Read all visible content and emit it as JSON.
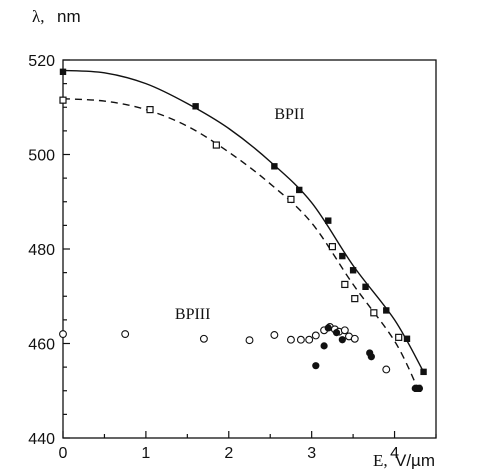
{
  "chart_data": {
    "type": "scatter",
    "xlabel_var": "E,",
    "xlabel_unit": "V/µm",
    "ylabel_var": "λ,",
    "ylabel_unit": "nm",
    "xlim": [
      0,
      4.5
    ],
    "ylim": [
      440,
      520
    ],
    "xticks": [
      0,
      1,
      2,
      3,
      4
    ],
    "yticks": [
      440,
      460,
      480,
      500,
      520
    ],
    "xtick_labels": [
      "0",
      "1",
      "2",
      "3",
      "4"
    ],
    "ytick_labels": [
      "440",
      "460",
      "480",
      "500",
      "520"
    ],
    "grid": false,
    "annotations": [
      {
        "text": "BPII",
        "x": 2.55,
        "y": 507.5
      },
      {
        "text": "BPIII",
        "x": 1.35,
        "y": 465.2
      }
    ],
    "series": [
      {
        "marker": "filled-square",
        "line": "solid",
        "points": [
          [
            0,
            517.5
          ],
          [
            1.6,
            510.2
          ],
          [
            2.55,
            497.5
          ],
          [
            2.85,
            492.5
          ],
          [
            3.2,
            486
          ],
          [
            3.37,
            478.5
          ],
          [
            3.5,
            475.5
          ],
          [
            3.65,
            472
          ],
          [
            3.9,
            467
          ],
          [
            4.15,
            461
          ],
          [
            4.35,
            454
          ]
        ]
      },
      {
        "marker": "hollow-square",
        "line": "dashed",
        "points": [
          [
            0,
            511.5
          ],
          [
            1.05,
            509.5
          ],
          [
            1.85,
            502
          ],
          [
            2.75,
            490.5
          ],
          [
            3.25,
            480.5
          ],
          [
            3.4,
            472.5
          ],
          [
            3.52,
            469.5
          ],
          [
            3.75,
            466.5
          ],
          [
            4.05,
            461.3
          ],
          [
            4.28,
            450.5
          ]
        ]
      },
      {
        "marker": "hollow-circle",
        "line": "none",
        "points": [
          [
            0,
            462
          ],
          [
            0.75,
            462
          ],
          [
            1.7,
            461
          ],
          [
            2.25,
            460.7
          ],
          [
            2.55,
            461.8
          ],
          [
            2.75,
            460.8
          ],
          [
            2.87,
            460.8
          ],
          [
            2.97,
            460.8
          ],
          [
            3.05,
            461.7
          ],
          [
            3.15,
            462.8
          ],
          [
            3.22,
            463.5
          ],
          [
            3.28,
            463
          ],
          [
            3.33,
            462.5
          ],
          [
            3.4,
            462.8
          ],
          [
            3.45,
            461.5
          ],
          [
            3.52,
            461
          ],
          [
            3.9,
            454.5
          ]
        ]
      },
      {
        "marker": "filled-circle",
        "line": "none",
        "points": [
          [
            3.05,
            455.3
          ],
          [
            3.15,
            459.5
          ],
          [
            3.2,
            463.3
          ],
          [
            3.3,
            462.3
          ],
          [
            3.37,
            460.8
          ],
          [
            3.7,
            458
          ],
          [
            3.72,
            457.2
          ],
          [
            4.25,
            450.5
          ],
          [
            4.3,
            450.5
          ]
        ]
      }
    ],
    "curves": [
      {
        "style": "solid",
        "points": [
          [
            0,
            517.8
          ],
          [
            0.5,
            517.3
          ],
          [
            1.0,
            515
          ],
          [
            1.5,
            510.8
          ],
          [
            2.0,
            505.5
          ],
          [
            2.5,
            498.5
          ],
          [
            3.0,
            489.8
          ],
          [
            3.5,
            476.5
          ],
          [
            4.0,
            465
          ],
          [
            4.35,
            454
          ]
        ]
      },
      {
        "style": "dashed",
        "points": [
          [
            0,
            511.8
          ],
          [
            0.5,
            511.3
          ],
          [
            1.0,
            509.5
          ],
          [
            1.5,
            506
          ],
          [
            2.0,
            500.5
          ],
          [
            2.5,
            493.8
          ],
          [
            3.0,
            485.5
          ],
          [
            3.5,
            472.5
          ],
          [
            4.0,
            460.5
          ],
          [
            4.28,
            450.5
          ]
        ]
      }
    ]
  }
}
